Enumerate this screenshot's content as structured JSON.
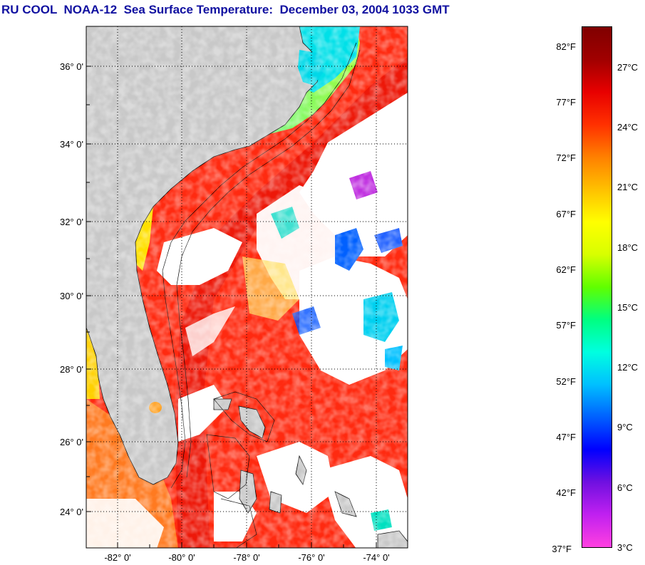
{
  "title": "RU COOL  NOAA-12  Sea Surface Temperature:  December 03, 2004 1033 GMT",
  "map": {
    "lat_labels": [
      "36° 0'",
      "34° 0'",
      "32° 0'",
      "30° 0'",
      "28° 0'",
      "26° 0'",
      "24° 0'"
    ],
    "lon_labels": [
      "-82° 0'",
      "-80° 0'",
      "-78° 0'",
      "-76° 0'",
      "-74° 0'"
    ],
    "lat_range": [
      23,
      37
    ],
    "lon_range": [
      -83,
      -73
    ],
    "grid": "dotted",
    "colors": {
      "land": "#c8c8c8",
      "cloud": "#ffffff",
      "warm_water": "#ff2a10",
      "frame": "#000000"
    }
  },
  "colorbar": {
    "fahrenheit_labels": [
      "82°F",
      "77°F",
      "72°F",
      "67°F",
      "62°F",
      "57°F",
      "52°F",
      "47°F",
      "42°F",
      "37°F"
    ],
    "celsius_labels": [
      "27°C",
      "24°C",
      "21°C",
      "18°C",
      "15°C",
      "12°C",
      "9°C",
      "6°C",
      "3°C"
    ],
    "colors": [
      "#ff40e0",
      "#c020f0",
      "#7010e0",
      "#0000ff",
      "#0060ff",
      "#00c0ff",
      "#00ffe0",
      "#00ff80",
      "#60ff00",
      "#d8ff00",
      "#ffff00",
      "#ffc000",
      "#ff8000",
      "#ff3000",
      "#e80000",
      "#a00000",
      "#800000"
    ]
  }
}
